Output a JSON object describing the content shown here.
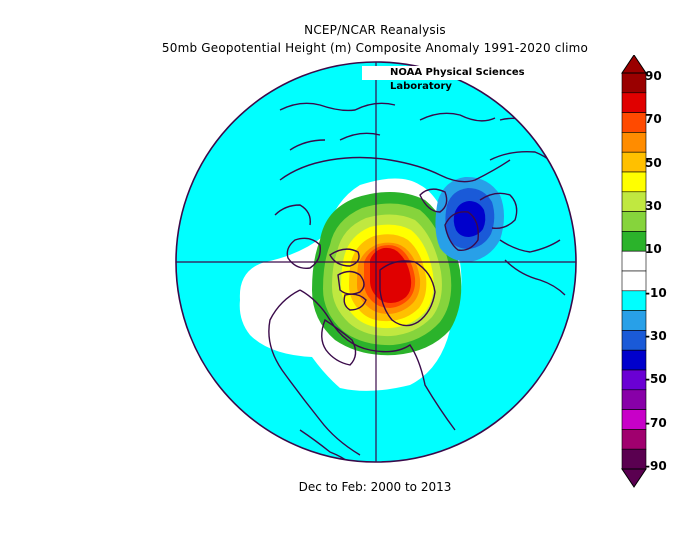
{
  "header": {
    "title": "NCEP/NCAR Reanalysis",
    "subtitle": "50mb Geopotential Height (m) Composite Anomaly 1991-2020 climo",
    "credit": "NOAA Physical Sciences Laboratory"
  },
  "footer": {
    "period": "Dec to Feb: 2000 to 2013"
  },
  "colorbar": {
    "labels": [
      "90",
      "70",
      "50",
      "30",
      "10",
      "-10",
      "-30",
      "-50",
      "-70",
      "-90"
    ],
    "colors": [
      "#9a0000",
      "#e00000",
      "#ff4a00",
      "#ff8c00",
      "#ffc000",
      "#ffff00",
      "#c0e840",
      "#86d43c",
      "#2bb32b",
      "#ffffff",
      "#ffffff",
      "#00ffff",
      "#28a0e8",
      "#1a5ad8",
      "#0000cc",
      "#6a00d4",
      "#8800a8",
      "#c800c8",
      "#a0006e",
      "#5a0050"
    ]
  },
  "map": {
    "projection": "north polar stereographic",
    "ocean_color": "#00ffff",
    "coast_color": "#3a0a4a",
    "anomaly_field": [
      {
        "level": "weak positive (0 to 10)",
        "color": "#ffffff"
      },
      {
        "level": "10 to 20",
        "color": "#2bb32b"
      },
      {
        "level": "20 to 30",
        "color": "#86d43c"
      },
      {
        "level": "30 to 40",
        "color": "#c0e840"
      },
      {
        "level": "40 to 50",
        "color": "#ffff00"
      },
      {
        "level": "50 to 60",
        "color": "#ffc000"
      },
      {
        "level": "60 to 70",
        "color": "#ff8c00"
      },
      {
        "level": "70 to 80",
        "color": "#ff4a00"
      },
      {
        "level": "80 to 90",
        "color": "#e00000"
      },
      {
        "level": "negative center -30 to -40",
        "color": "#1a5ad8"
      },
      {
        "level": "negative center -40 to -50",
        "color": "#0000cc"
      }
    ]
  }
}
